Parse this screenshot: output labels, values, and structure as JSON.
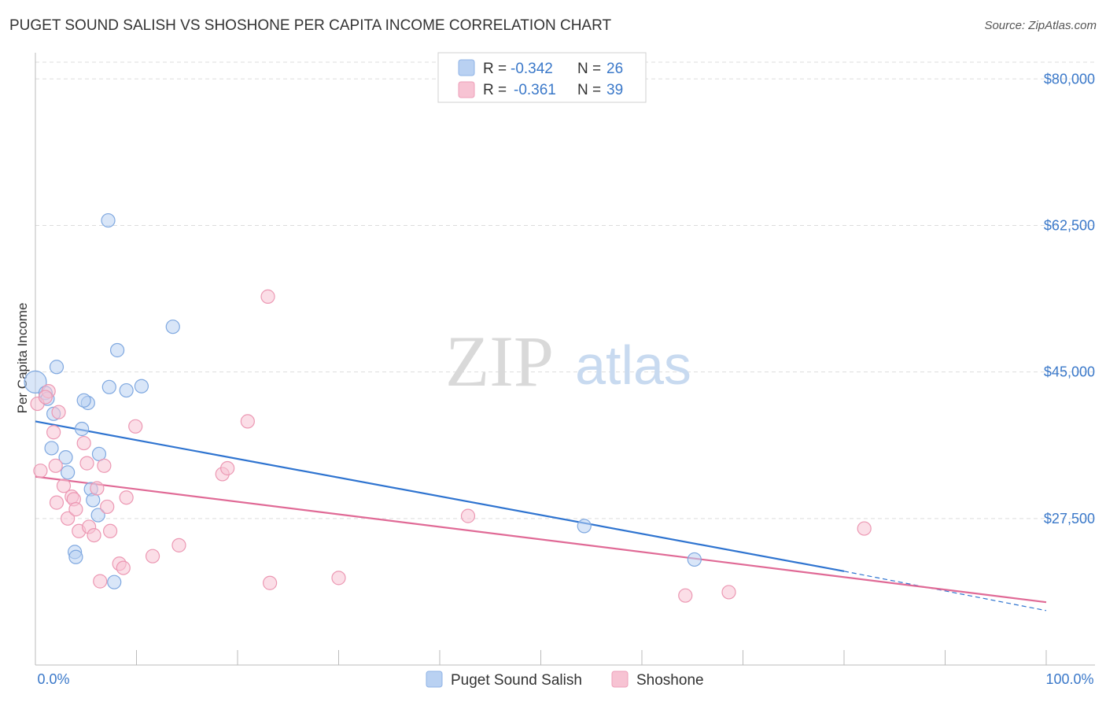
{
  "title": "PUGET SOUND SALISH VS SHOSHONE PER CAPITA INCOME CORRELATION CHART",
  "source": "Source: ZipAtlas.com",
  "watermark": {
    "zip": "ZIP",
    "atlas": "atlas"
  },
  "colors": {
    "blue": "#3a78c9",
    "blue_fill": "#b9d1f2",
    "blue_line": "#2f74d0",
    "pink_fill": "#f7c3d3",
    "pink_line": "#e06a96",
    "grid": "#dddddd"
  },
  "chart_data": {
    "type": "scatter",
    "title": "PUGET SOUND SALISH VS SHOSHONE PER CAPITA INCOME CORRELATION CHART",
    "xlabel": "",
    "ylabel": "Per Capita Income",
    "xlim": [
      0,
      100
    ],
    "ylim": [
      10000,
      82000
    ],
    "x_tick_labels": {
      "min": "0.0%",
      "max": "100.0%"
    },
    "y_ticks": [
      {
        "value": 27500,
        "label": "$27,500"
      },
      {
        "value": 45000,
        "label": "$45,000"
      },
      {
        "value": 62500,
        "label": "$62,500"
      },
      {
        "value": 80000,
        "label": "$80,000"
      }
    ],
    "legend": {
      "entries": [
        {
          "r_label": "R =",
          "r_value": "-0.342",
          "n_label": "N =",
          "n_value": "26"
        },
        {
          "r_label": "R =",
          "r_value": "-0.361",
          "n_label": "N =",
          "n_value": "39"
        }
      ]
    },
    "series": [
      {
        "name": "Puget Sound Salish",
        "points": [
          [
            0.0,
            43.8
          ],
          [
            1.0,
            42.5
          ],
          [
            1.2,
            41.8
          ],
          [
            1.8,
            40.0
          ],
          [
            2.1,
            45.6
          ],
          [
            4.6,
            38.2
          ],
          [
            1.6,
            35.9
          ],
          [
            3.0,
            34.8
          ],
          [
            3.2,
            33.0
          ],
          [
            5.2,
            41.3
          ],
          [
            5.5,
            31.0
          ],
          [
            5.7,
            29.7
          ],
          [
            6.2,
            27.9
          ],
          [
            6.3,
            35.2
          ],
          [
            7.2,
            63.1
          ],
          [
            7.8,
            19.9
          ],
          [
            8.1,
            47.6
          ],
          [
            7.3,
            43.2
          ],
          [
            9.0,
            42.8
          ],
          [
            10.5,
            43.3
          ],
          [
            13.6,
            50.4
          ],
          [
            3.9,
            23.5
          ],
          [
            4.0,
            22.9
          ],
          [
            54.3,
            26.6
          ],
          [
            65.2,
            22.6
          ],
          [
            4.8,
            41.6
          ]
        ],
        "trend": {
          "x0": 0.0,
          "y0": 39.1,
          "x1": 80.0,
          "y1": 21.2,
          "x2": 100.0,
          "y2": 16.5
        }
      },
      {
        "name": "Shoshone",
        "points": [
          [
            0.2,
            41.2
          ],
          [
            0.5,
            33.2
          ],
          [
            1.3,
            42.7
          ],
          [
            1.8,
            37.8
          ],
          [
            2.3,
            40.2
          ],
          [
            2.0,
            33.8
          ],
          [
            2.1,
            29.4
          ],
          [
            2.8,
            31.4
          ],
          [
            3.2,
            27.5
          ],
          [
            3.6,
            30.1
          ],
          [
            3.8,
            29.8
          ],
          [
            4.0,
            28.6
          ],
          [
            4.3,
            26.0
          ],
          [
            4.8,
            36.5
          ],
          [
            5.1,
            34.1
          ],
          [
            5.3,
            26.5
          ],
          [
            5.8,
            25.5
          ],
          [
            6.1,
            31.1
          ],
          [
            6.4,
            20.0
          ],
          [
            6.8,
            33.8
          ],
          [
            7.1,
            28.9
          ],
          [
            7.4,
            26.0
          ],
          [
            8.3,
            22.1
          ],
          [
            8.7,
            21.6
          ],
          [
            9.0,
            30.0
          ],
          [
            9.9,
            38.5
          ],
          [
            11.6,
            23.0
          ],
          [
            14.2,
            24.3
          ],
          [
            18.5,
            32.8
          ],
          [
            19.0,
            33.5
          ],
          [
            21.0,
            39.1
          ],
          [
            23.0,
            54.0
          ],
          [
            23.2,
            19.8
          ],
          [
            30.0,
            20.4
          ],
          [
            42.8,
            27.8
          ],
          [
            64.3,
            18.3
          ],
          [
            68.6,
            18.7
          ],
          [
            82.0,
            26.3
          ],
          [
            1.0,
            42.0
          ]
        ],
        "trend": {
          "x0": 0.0,
          "y0": 32.5,
          "x1": 100.0,
          "y1": 17.5
        }
      }
    ]
  },
  "bottom_legend": {
    "items": [
      "Puget Sound Salish",
      "Shoshone"
    ]
  }
}
